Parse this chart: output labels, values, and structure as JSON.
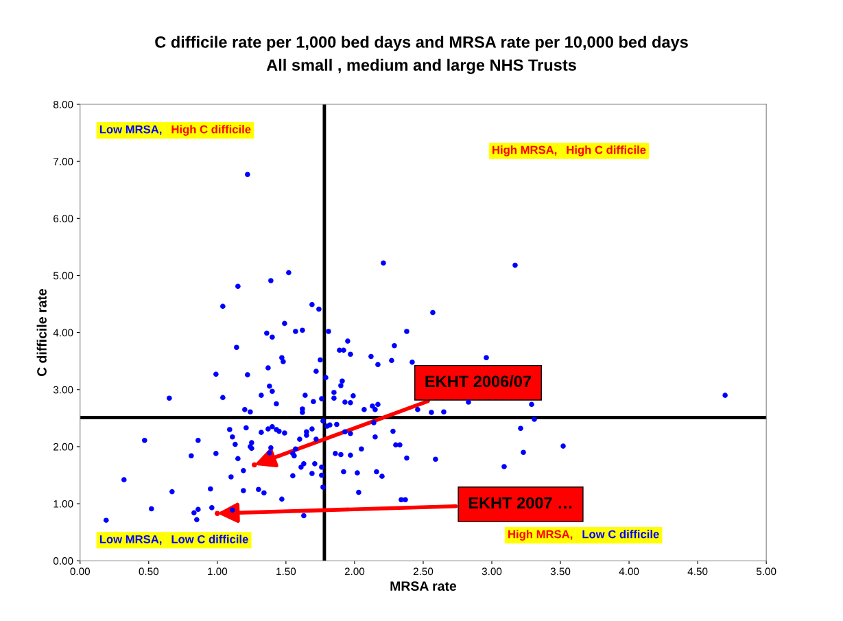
{
  "chart_data": {
    "type": "scatter",
    "title": "C difficile rate per 1,000 bed days and MRSA rate per 10,000 bed days",
    "subtitle": "All small , medium and large NHS Trusts",
    "xlabel": "MRSA rate",
    "ylabel": "C difficile rate",
    "xlim": [
      0,
      5
    ],
    "ylim": [
      0,
      8
    ],
    "xticks": [
      {
        "value": 0,
        "label": "0.00"
      },
      {
        "value": 0.5,
        "label": "0.50"
      },
      {
        "value": 1,
        "label": "1.00"
      },
      {
        "value": 1.5,
        "label": "1.50"
      },
      {
        "value": 2,
        "label": "2.00"
      },
      {
        "value": 2.5,
        "label": "2.50"
      },
      {
        "value": 3,
        "label": "3.00"
      },
      {
        "value": 3.5,
        "label": "3.50"
      },
      {
        "value": 4,
        "label": "4.00"
      },
      {
        "value": 4.5,
        "label": "4.50"
      },
      {
        "value": 5,
        "label": "5.00"
      }
    ],
    "yticks": [
      {
        "value": 0,
        "label": "0.00"
      },
      {
        "value": 1,
        "label": "1.00"
      },
      {
        "value": 2,
        "label": "2.00"
      },
      {
        "value": 3,
        "label": "3.00"
      },
      {
        "value": 4,
        "label": "4.00"
      },
      {
        "value": 5,
        "label": "5.00"
      },
      {
        "value": 6,
        "label": "6.00"
      },
      {
        "value": 7,
        "label": "7.00"
      },
      {
        "value": 8,
        "label": "8.00"
      }
    ],
    "grid": false,
    "marker": "circle",
    "series": [
      {
        "color": "#0000ff",
        "x": [
          1.22,
          1.15,
          1.39,
          1.52,
          1.04,
          2.21,
          3.17,
          1.69,
          1.74,
          2.57,
          1.49,
          1.36,
          1.4,
          1.57,
          1.62,
          1.81,
          1.14,
          0.99,
          1.22,
          1.47,
          1.48,
          1.75,
          1.89,
          1.92,
          1.95,
          1.97,
          2.12,
          2.17,
          2.27,
          2.29,
          2.38,
          2.42,
          2.96,
          1.37,
          1.72,
          1.4,
          1.38,
          1.32,
          1.04,
          0.65,
          1.62,
          1.62,
          1.79,
          1.9,
          1.91,
          1.85,
          1.85,
          1.99,
          1.97,
          1.76,
          1.7,
          1.64,
          1.93,
          2.07,
          2.13,
          2.15,
          2.17,
          2.46,
          2.56,
          2.65,
          2.83,
          3.29,
          4.7,
          1.2,
          1.24,
          1.43,
          1.09,
          1.21,
          1.32,
          1.37,
          1.4,
          1.43,
          1.45,
          1.11,
          1.13,
          1.15,
          1.19,
          1.24,
          1.25,
          1.25,
          1.38,
          1.39,
          1.49,
          1.55,
          1.57,
          1.6,
          1.65,
          1.65,
          1.69,
          1.72,
          1.77,
          1.8,
          1.82,
          1.87,
          1.93,
          1.97,
          2.14,
          2.15,
          2.28,
          2.3,
          2.33,
          2.38,
          3.21,
          3.31,
          3.23,
          3.09,
          3.52,
          2.59,
          1.56,
          1.63,
          1.61,
          1.55,
          1.69,
          1.71,
          1.76,
          1.76,
          1.77,
          1.86,
          1.9,
          1.92,
          1.97,
          2.05,
          2.02,
          2.16,
          2.2,
          2.03,
          2.34,
          2.37,
          0.81,
          0.86,
          0.47,
          0.67,
          0.52,
          0.32,
          0.19,
          0.83,
          0.85,
          0.86,
          0.95,
          0.96,
          1.11,
          0.99,
          1.1,
          1.19,
          1.3,
          1.34,
          1.47,
          1.63
        ],
        "values": [
          6.77,
          4.81,
          4.91,
          5.05,
          4.46,
          5.22,
          5.18,
          4.49,
          4.41,
          4.35,
          4.16,
          3.99,
          3.92,
          4.02,
          4.04,
          4.02,
          3.74,
          3.27,
          3.26,
          3.56,
          3.49,
          3.52,
          3.69,
          3.69,
          3.85,
          3.62,
          3.58,
          3.44,
          3.51,
          3.77,
          4.02,
          3.48,
          3.56,
          3.38,
          3.32,
          2.97,
          3.06,
          2.9,
          2.86,
          2.85,
          2.66,
          2.6,
          3.21,
          3.07,
          3.15,
          2.95,
          2.85,
          2.89,
          2.77,
          2.84,
          2.79,
          2.9,
          2.78,
          2.65,
          2.71,
          2.65,
          2.74,
          2.65,
          2.6,
          2.61,
          2.78,
          2.74,
          2.9,
          2.65,
          2.61,
          2.75,
          2.3,
          2.33,
          2.25,
          2.31,
          2.35,
          2.3,
          2.27,
          2.17,
          2.04,
          1.79,
          1.58,
          2.0,
          2.07,
          1.97,
          1.89,
          1.98,
          2.24,
          1.88,
          1.96,
          2.13,
          2.26,
          2.2,
          2.31,
          2.13,
          2.45,
          2.36,
          2.38,
          2.39,
          2.26,
          2.23,
          2.42,
          2.17,
          2.27,
          2.03,
          2.03,
          1.8,
          2.32,
          2.48,
          1.9,
          1.65,
          2.01,
          1.78,
          1.84,
          1.7,
          1.64,
          1.49,
          1.53,
          1.7,
          1.64,
          1.5,
          1.29,
          1.88,
          1.86,
          1.56,
          1.85,
          1.96,
          1.54,
          1.56,
          1.48,
          1.2,
          1.07,
          1.07,
          1.84,
          2.11,
          2.11,
          1.21,
          0.91,
          1.42,
          0.71,
          0.84,
          0.72,
          0.9,
          1.26,
          0.93,
          0.89,
          1.88,
          1.47,
          1.23,
          1.25,
          1.19,
          1.08,
          0.79
        ]
      },
      {
        "color": "#ff0000",
        "x": [
          1.27,
          1.0
        ],
        "values": [
          1.68,
          0.83
        ]
      }
    ],
    "ref_lines": [
      {
        "axis": "y",
        "value": 2.51,
        "color": "#000000"
      },
      {
        "axis": "x",
        "value": 1.78,
        "color": "#000000"
      }
    ],
    "annotations": [
      "Low MRSA, High C difficile",
      "High MRSA, High C difficile",
      "Low MRSA, Low C difficile",
      "High MRSA, Low C difficile",
      {
        "text": "EKHT 2006/07",
        "x": 1.27,
        "y": 1.68
      },
      {
        "text": "EKHT 2007 …",
        "x": 1.0,
        "y": 0.83
      }
    ]
  }
}
